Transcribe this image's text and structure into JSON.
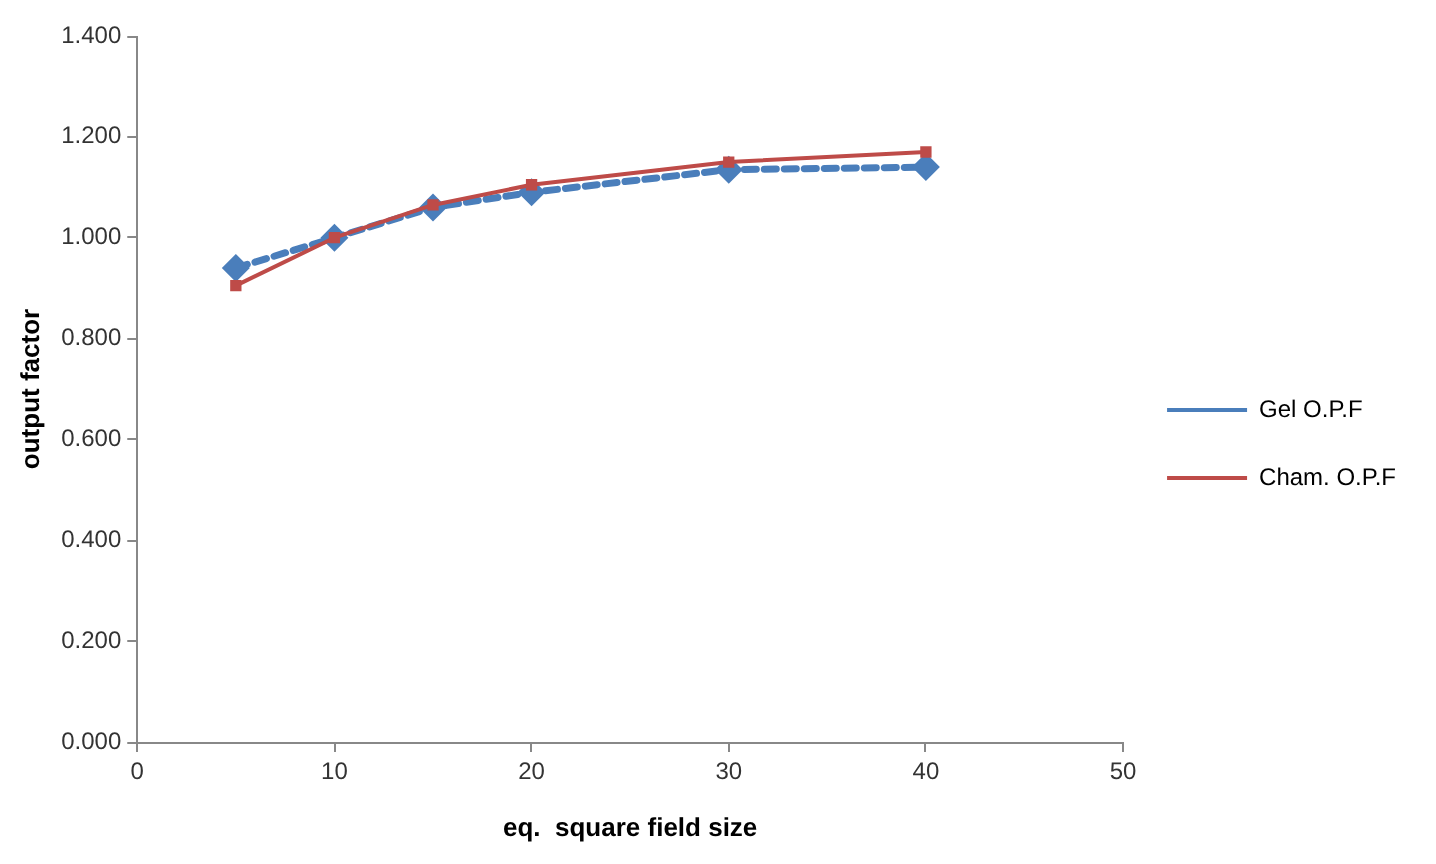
{
  "chart_data": {
    "type": "line",
    "xlabel": "eq.  square field size",
    "ylabel": "output factor",
    "x": [
      5,
      10,
      15,
      20,
      30,
      40
    ],
    "series": [
      {
        "name": "Gel O.P.F",
        "color": "#4a7ebb",
        "values": [
          0.94,
          1.0,
          1.06,
          1.09,
          1.135,
          1.14
        ],
        "marker": "diamond",
        "line_style": "dashed"
      },
      {
        "name": "Cham. O.P.F",
        "color": "#be4b48",
        "values": [
          0.905,
          1.0,
          1.065,
          1.105,
          1.15,
          1.17
        ],
        "marker": "square",
        "line_style": "solid"
      }
    ],
    "xlim": [
      0,
      50
    ],
    "xticks": [
      0,
      10,
      20,
      30,
      40,
      50
    ],
    "ylim": [
      0,
      1.4
    ],
    "yticks": [
      {
        "value": 0,
        "label": "0.000"
      },
      {
        "value": 0.2,
        "label": "0.200"
      },
      {
        "value": 0.4,
        "label": "0.400"
      },
      {
        "value": 0.6,
        "label": "0.600"
      },
      {
        "value": 0.8,
        "label": "0.800"
      },
      {
        "value": 1.0,
        "label": "1.000"
      },
      {
        "value": 1.2,
        "label": "1.200"
      },
      {
        "value": 1.4,
        "label": "1.400"
      }
    ],
    "grid": false,
    "legend": "right"
  }
}
